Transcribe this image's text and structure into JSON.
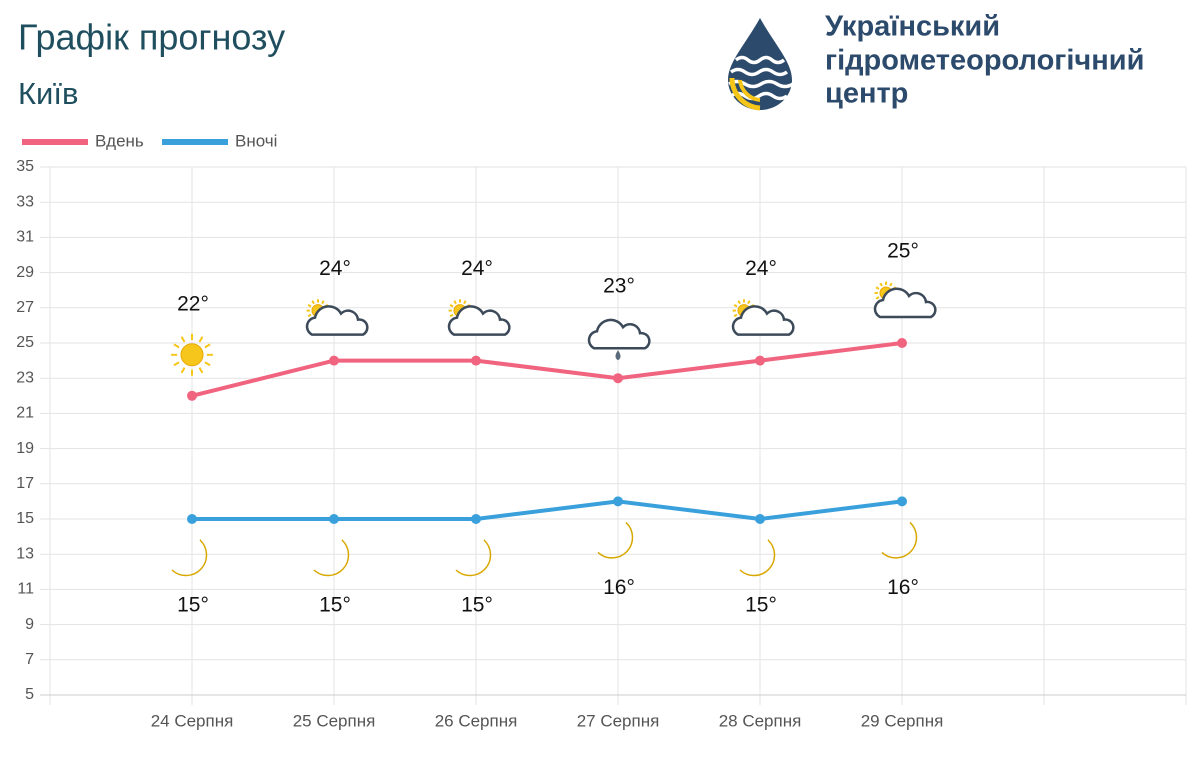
{
  "header": {
    "title": "Графік прогнозу",
    "city": "Київ",
    "logo_text": [
      "Український",
      "гідрометеорологічний",
      "центр"
    ]
  },
  "chart_data": {
    "type": "line",
    "categories": [
      null,
      "24 Серпня",
      "25 Серпня",
      "26 Серпня",
      "27 Серпня",
      "28 Серпня",
      "29 Серпня",
      null
    ],
    "series": [
      {
        "name": "Вдень",
        "color": "#f0647f",
        "values": [
          null,
          22,
          24,
          24,
          23,
          24,
          25,
          null
        ],
        "value_labels": [
          null,
          "22°",
          "24°",
          "24°",
          "23°",
          "24°",
          "25°",
          null
        ]
      },
      {
        "name": "Вночі",
        "color": "#3aa0dc",
        "values": [
          null,
          15,
          15,
          15,
          16,
          15,
          16,
          null
        ],
        "value_labels": [
          null,
          "15°",
          "15°",
          "15°",
          "16°",
          "15°",
          "16°",
          null
        ]
      }
    ],
    "ylim": [
      5,
      35
    ],
    "yticks": [
      5,
      7,
      9,
      11,
      13,
      15,
      17,
      19,
      21,
      23,
      25,
      27,
      29,
      31,
      33,
      35
    ],
    "grid": true,
    "legend": "top-left"
  }
}
